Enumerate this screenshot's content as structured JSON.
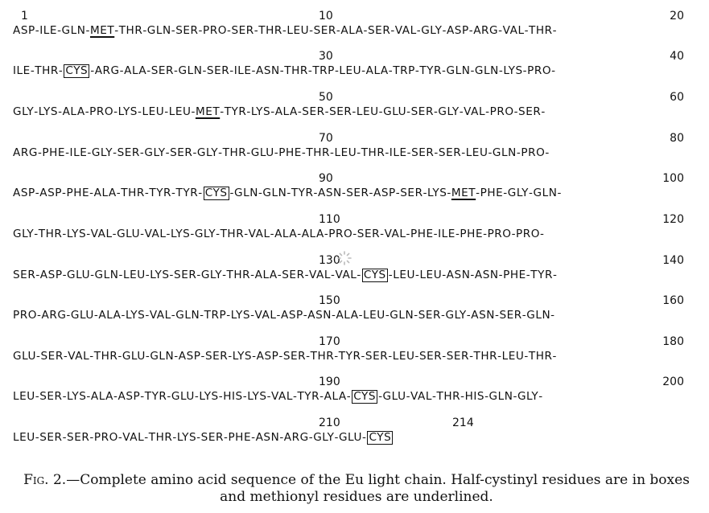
{
  "figure": {
    "lines": [
      {
        "left_num": "1",
        "mid_num": "10",
        "right_num": "20",
        "residues": [
          "ASP",
          "ILE",
          "GLN",
          "MET",
          "THR",
          "GLN",
          "SER",
          "PRO",
          "SER",
          "THR",
          "LEU",
          "SER",
          "ALA",
          "SER",
          "VAL",
          "GLY",
          "ASP",
          "ARG",
          "VAL",
          "THR"
        ],
        "boxed": [],
        "underlined": [
          3
        ],
        "trailing": true
      },
      {
        "left_num": "",
        "mid_num": "30",
        "right_num": "40",
        "residues": [
          "ILE",
          "THR",
          "CYS",
          "ARG",
          "ALA",
          "SER",
          "GLN",
          "SER",
          "ILE",
          "ASN",
          "THR",
          "TRP",
          "LEU",
          "ALA",
          "TRP",
          "TYR",
          "GLN",
          "GLN",
          "LYS",
          "PRO"
        ],
        "boxed": [
          2
        ],
        "underlined": [],
        "trailing": true
      },
      {
        "left_num": "",
        "mid_num": "50",
        "right_num": "60",
        "residues": [
          "GLY",
          "LYS",
          "ALA",
          "PRO",
          "LYS",
          "LEU",
          "LEU",
          "MET",
          "TYR",
          "LYS",
          "ALA",
          "SER",
          "SER",
          "LEU",
          "GLU",
          "SER",
          "GLY",
          "VAL",
          "PRO",
          "SER"
        ],
        "boxed": [],
        "underlined": [
          7
        ],
        "trailing": true
      },
      {
        "left_num": "",
        "mid_num": "70",
        "right_num": "80",
        "residues": [
          "ARG",
          "PHE",
          "ILE",
          "GLY",
          "SER",
          "GLY",
          "SER",
          "GLY",
          "THR",
          "GLU",
          "PHE",
          "THR",
          "LEU",
          "THR",
          "ILE",
          "SER",
          "SER",
          "LEU",
          "GLN",
          "PRO"
        ],
        "boxed": [],
        "underlined": [],
        "trailing": true
      },
      {
        "left_num": "",
        "mid_num": "90",
        "right_num": "100",
        "residues": [
          "ASP",
          "ASP",
          "PHE",
          "ALA",
          "THR",
          "TYR",
          "TYR",
          "CYS",
          "GLN",
          "GLN",
          "TYR",
          "ASN",
          "SER",
          "ASP",
          "SER",
          "LYS",
          "MET",
          "PHE",
          "GLY",
          "GLN"
        ],
        "boxed": [
          7
        ],
        "underlined": [
          16
        ],
        "trailing": true
      },
      {
        "left_num": "",
        "mid_num": "110",
        "right_num": "120",
        "residues": [
          "GLY",
          "THR",
          "LYS",
          "VAL",
          "GLU",
          "VAL",
          "LYS",
          "GLY",
          "THR",
          "VAL",
          "ALA",
          "ALA",
          "PRO",
          "SER",
          "VAL",
          "PHE",
          "ILE",
          "PHE",
          "PRO",
          "PRO"
        ],
        "boxed": [],
        "underlined": [],
        "trailing": true
      },
      {
        "left_num": "",
        "mid_num": "130",
        "right_num": "140",
        "residues": [
          "SER",
          "ASP",
          "GLU",
          "GLN",
          "LEU",
          "LYS",
          "SER",
          "GLY",
          "THR",
          "ALA",
          "SER",
          "VAL",
          "VAL",
          "CYS",
          "LEU",
          "LEU",
          "ASN",
          "ASN",
          "PHE",
          "TYR"
        ],
        "boxed": [
          13
        ],
        "underlined": [],
        "trailing": true
      },
      {
        "left_num": "",
        "mid_num": "150",
        "right_num": "160",
        "residues": [
          "PRO",
          "ARG",
          "GLU",
          "ALA",
          "LYS",
          "VAL",
          "GLN",
          "TRP",
          "LYS",
          "VAL",
          "ASP",
          "ASN",
          "ALA",
          "LEU",
          "GLN",
          "SER",
          "GLY",
          "ASN",
          "SER",
          "GLN"
        ],
        "boxed": [],
        "underlined": [],
        "trailing": true
      },
      {
        "left_num": "",
        "mid_num": "170",
        "right_num": "180",
        "residues": [
          "GLU",
          "SER",
          "VAL",
          "THR",
          "GLU",
          "GLN",
          "ASP",
          "SER",
          "LYS",
          "ASP",
          "SER",
          "THR",
          "TYR",
          "SER",
          "LEU",
          "SER",
          "SER",
          "THR",
          "LEU",
          "THR"
        ],
        "boxed": [],
        "underlined": [],
        "trailing": true
      },
      {
        "left_num": "",
        "mid_num": "190",
        "right_num": "200",
        "residues": [
          "LEU",
          "SER",
          "LYS",
          "ALA",
          "ASP",
          "TYR",
          "GLU",
          "LYS",
          "HIS",
          "LYS",
          "VAL",
          "TYR",
          "ALA",
          "CYS",
          "GLU",
          "VAL",
          "THR",
          "HIS",
          "GLN",
          "GLY"
        ],
        "boxed": [
          13
        ],
        "underlined": [],
        "trailing": true
      },
      {
        "left_num": "",
        "mid_num": "210",
        "right_num": "",
        "end_num": "214",
        "residues": [
          "LEU",
          "SER",
          "SER",
          "PRO",
          "VAL",
          "THR",
          "LYS",
          "SER",
          "PHE",
          "ASN",
          "ARG",
          "GLY",
          "GLU",
          "CYS"
        ],
        "boxed": [
          13
        ],
        "underlined": [],
        "trailing": false
      }
    ]
  },
  "caption": {
    "label": "Fig. 2.",
    "text": "—Complete amino acid sequence of the Eu light chain.  Half-cystinyl residues are in boxes and methionyl residues are underlined."
  }
}
